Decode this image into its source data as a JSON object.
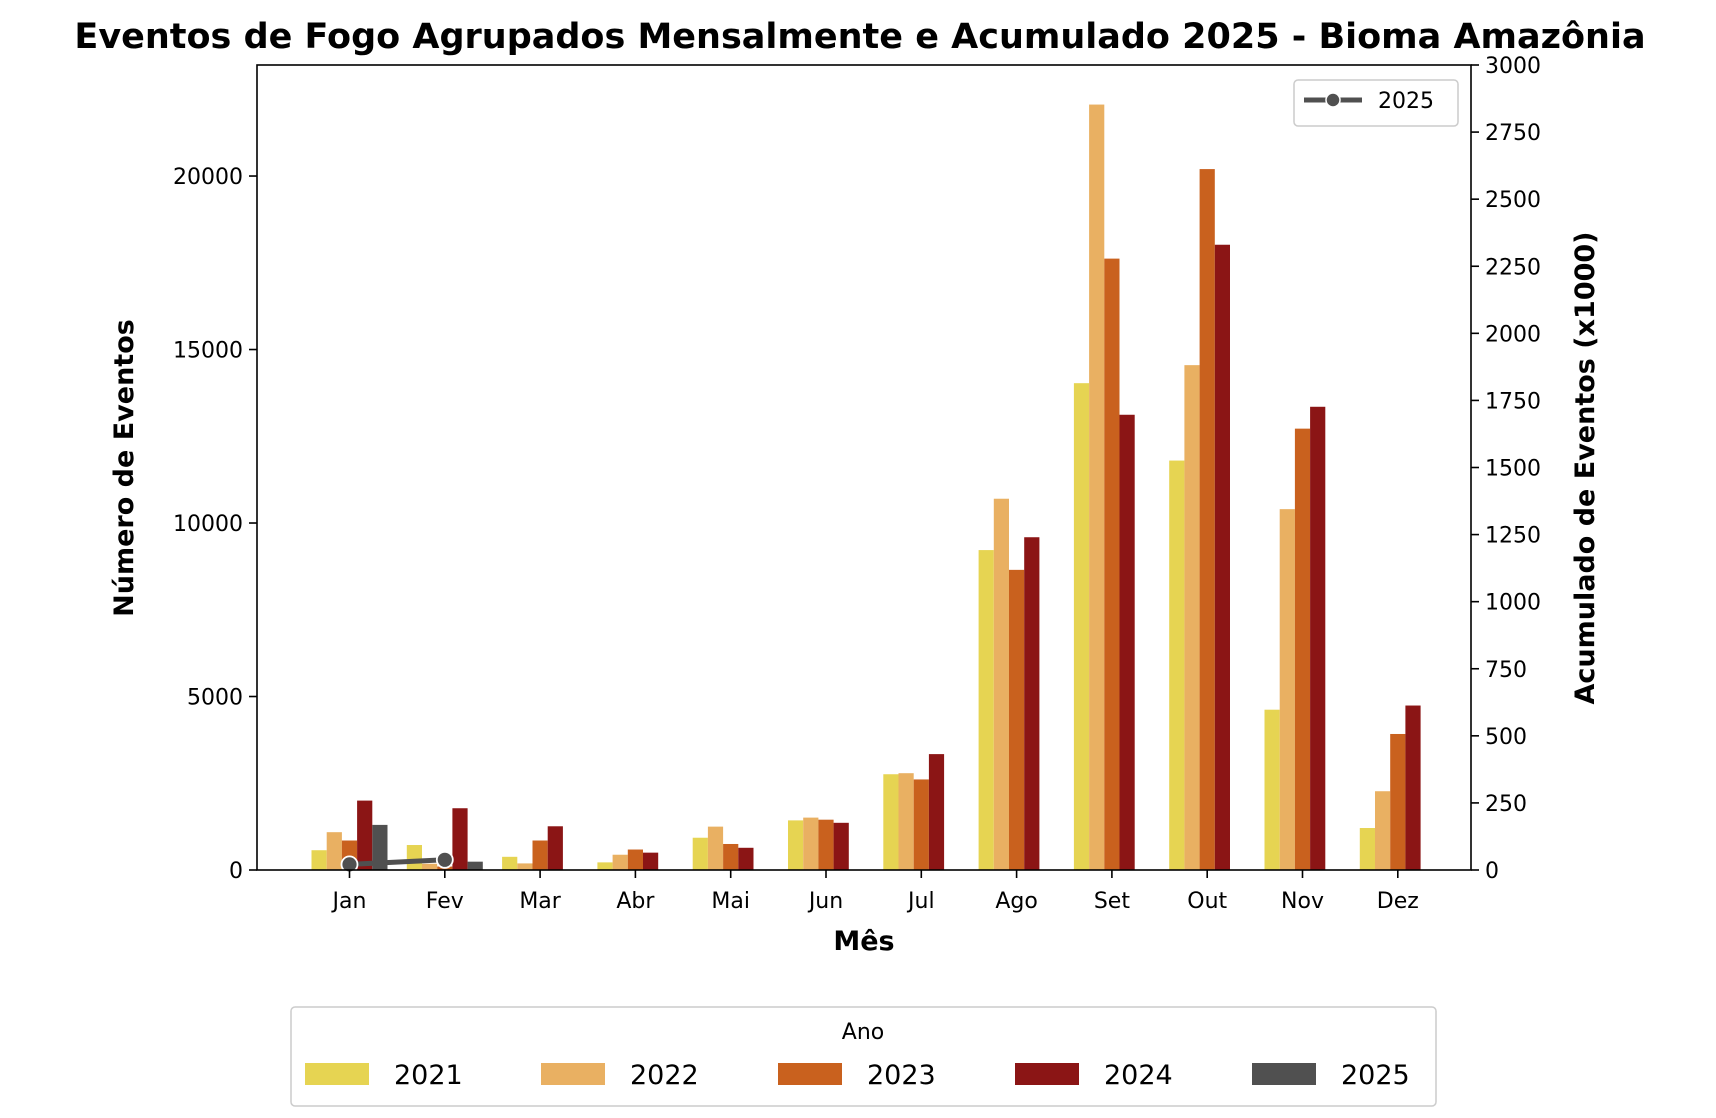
{
  "chart_data": {
    "type": "bar",
    "title": "Eventos de Fogo Agrupados Mensalmente e Acumulado 2025 - Bioma Amazônia",
    "xlabel": "Mês",
    "ylabel": "Número de Eventos",
    "y2label": "Acumulado de Eventos (x1000)",
    "categories": [
      "Jan",
      "Fev",
      "Mar",
      "Abr",
      "Mai",
      "Jun",
      "Jul",
      "Ago",
      "Set",
      "Out",
      "Nov",
      "Dez"
    ],
    "ylim": [
      0,
      23200
    ],
    "y2lim": [
      0,
      3000
    ],
    "y_ticks": [
      0,
      5000,
      10000,
      15000,
      20000
    ],
    "y2_ticks": [
      0,
      250,
      500,
      750,
      1000,
      1250,
      1500,
      1750,
      2000,
      2250,
      2500,
      2750,
      3000
    ],
    "series": [
      {
        "name": "2021",
        "color": "#e6d452",
        "values": [
          570,
          720,
          380,
          220,
          930,
          1430,
          2760,
          9220,
          14030,
          11800,
          4620,
          1210
        ]
      },
      {
        "name": "2022",
        "color": "#e9b062",
        "values": [
          1090,
          180,
          190,
          440,
          1250,
          1510,
          2790,
          10700,
          22060,
          14550,
          10400,
          2270
        ]
      },
      {
        "name": "2023",
        "color": "#c9611e",
        "values": [
          850,
          100,
          850,
          590,
          750,
          1450,
          2610,
          8650,
          17620,
          20200,
          12720,
          3920
        ]
      },
      {
        "name": "2024",
        "color": "#8b1515",
        "values": [
          2000,
          1780,
          1260,
          500,
          640,
          1360,
          3340,
          9590,
          13120,
          18020,
          13350,
          4740
        ]
      },
      {
        "name": "2025",
        "color": "#505050",
        "values": [
          1300,
          240,
          null,
          null,
          null,
          null,
          null,
          null,
          null,
          null,
          null,
          null
        ]
      }
    ],
    "line_series": {
      "name": "2025",
      "color": "#505050",
      "axis": "right",
      "values": [
        21,
        38,
        null,
        null,
        null,
        null,
        null,
        null,
        null,
        null,
        null,
        null
      ]
    },
    "legend": {
      "title": "Ano",
      "placement": "bottom",
      "entries": [
        "2021",
        "2022",
        "2023",
        "2024",
        "2025"
      ]
    },
    "line_legend": {
      "label": "2025",
      "placement": "top-right"
    },
    "grid": false
  }
}
